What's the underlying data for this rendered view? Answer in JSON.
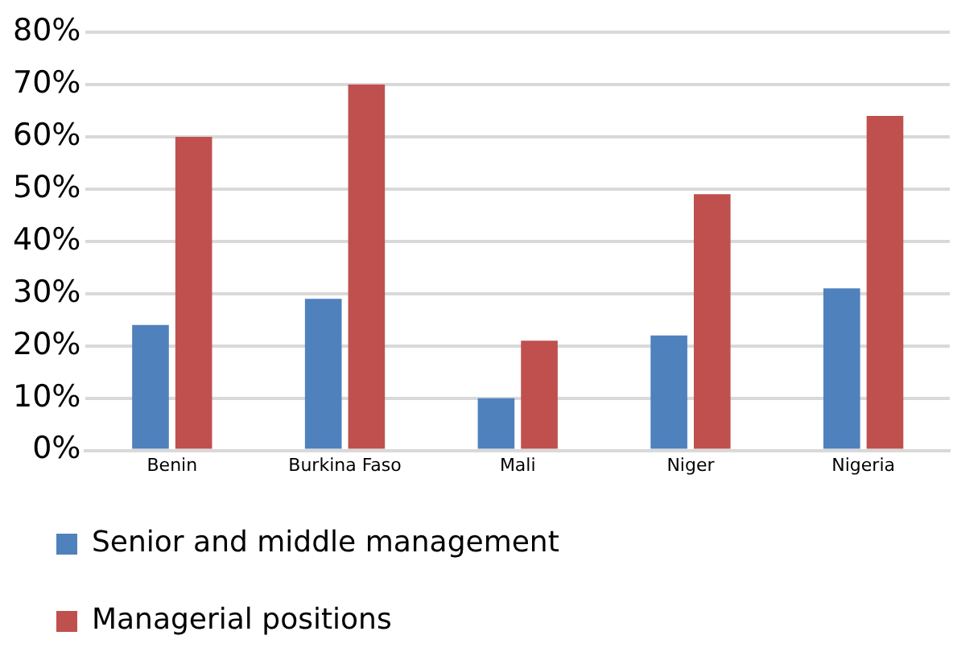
{
  "chart_data": {
    "type": "bar",
    "categories": [
      "Benin",
      "Burkina Faso",
      "Mali",
      "Niger",
      "Nigeria"
    ],
    "series": [
      {
        "name": "Senior and middle management",
        "color": "#4f81bd",
        "values": [
          24,
          29,
          10,
          22,
          31
        ]
      },
      {
        "name": "Managerial positions",
        "color": "#c0504d",
        "values": [
          60,
          70,
          21,
          49,
          64
        ]
      }
    ],
    "ylim": [
      0,
      80
    ],
    "yticks": [
      {
        "value": 0,
        "label": "0%"
      },
      {
        "value": 10,
        "label": "10%"
      },
      {
        "value": 20,
        "label": "20%"
      },
      {
        "value": 30,
        "label": "30%"
      },
      {
        "value": 40,
        "label": "40%"
      },
      {
        "value": 50,
        "label": "50%"
      },
      {
        "value": 60,
        "label": "60%"
      },
      {
        "value": 70,
        "label": "70%"
      },
      {
        "value": 80,
        "label": "80%"
      }
    ],
    "grid": "y",
    "legend": "bottom"
  }
}
